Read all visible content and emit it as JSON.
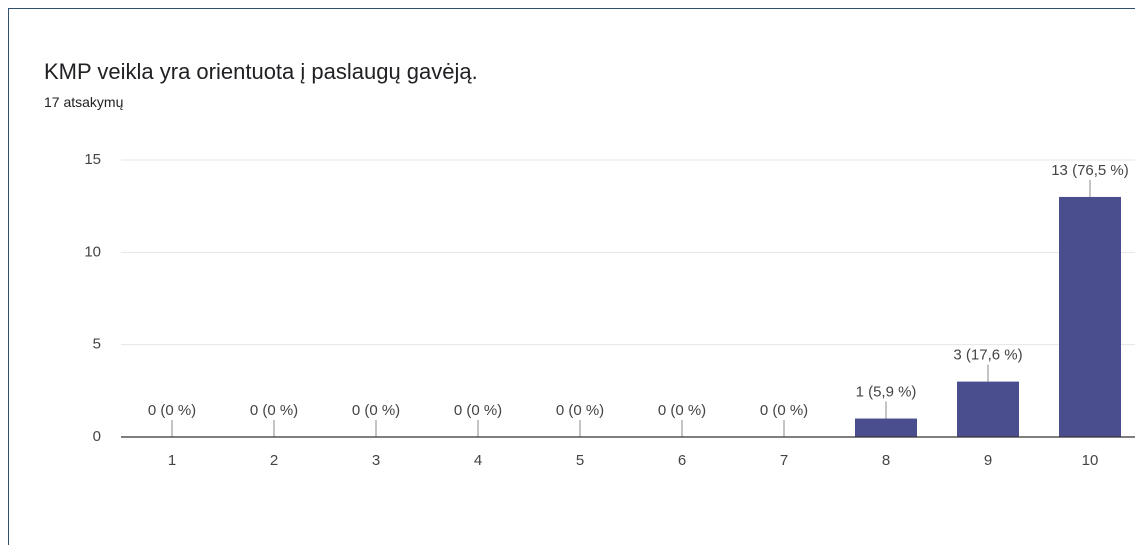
{
  "chart_data": {
    "type": "bar",
    "title": "KMP veikla yra orientuota į paslaugų gavėją.",
    "subtitle": "17 atsakymų",
    "categories": [
      "1",
      "2",
      "3",
      "4",
      "5",
      "6",
      "7",
      "8",
      "9",
      "10"
    ],
    "values": [
      0,
      0,
      0,
      0,
      0,
      0,
      0,
      1,
      3,
      13
    ],
    "value_labels": [
      "0 (0 %)",
      "0 (0 %)",
      "0 (0 %)",
      "0 (0 %)",
      "0 (0 %)",
      "0 (0 %)",
      "0 (0 %)",
      "1 (5,9 %)",
      "3 (17,6 %)",
      "13 (76,5 %)"
    ],
    "color": "#4b4e8e",
    "ylim": [
      0,
      15
    ],
    "yticks": [
      0,
      5,
      10,
      15
    ],
    "grid": true
  }
}
